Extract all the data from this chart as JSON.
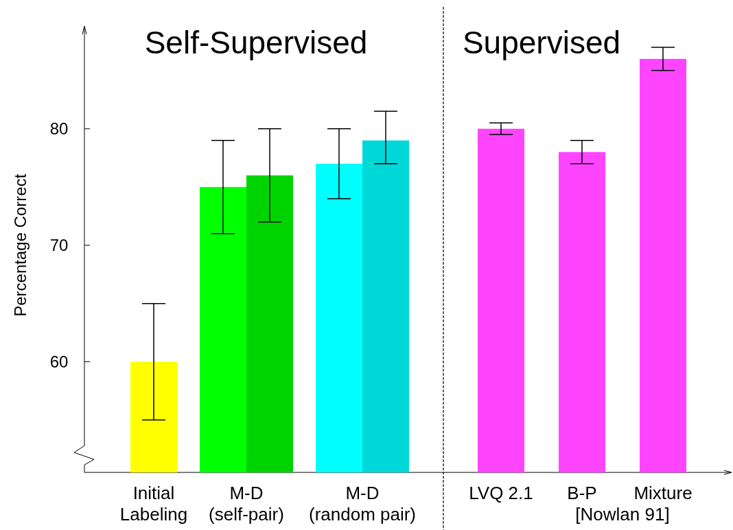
{
  "chart_data": {
    "type": "bar",
    "ylabel": "Percentage Correct",
    "categories": [
      "Initial\nLabeling",
      "M-D\n(self-pair)",
      "M-D\n(random pair)",
      "LVQ 2.1",
      "B-P",
      "Mixture"
    ],
    "series": [
      {
        "values": [
          60,
          75,
          77,
          80,
          78,
          86
        ],
        "colors": [
          "#ffff00",
          "#00ff00",
          "#00ffff",
          "#ff44ff",
          "#ff44ff",
          "#ff44ff"
        ],
        "errors": [
          [
            55,
            65
          ],
          [
            71,
            79
          ],
          [
            74,
            80
          ],
          [
            79.5,
            80.5
          ],
          [
            77,
            79
          ],
          [
            85,
            87
          ]
        ]
      },
      {
        "values": [
          null,
          76,
          79,
          null,
          null,
          null
        ],
        "colors": [
          null,
          "#00d400",
          "#00d8d8",
          null,
          null,
          null
        ],
        "errors": [
          null,
          [
            72,
            80
          ],
          [
            77,
            81.5
          ],
          null,
          null,
          null
        ]
      }
    ],
    "ylim": [
      50.5,
      88.7
    ],
    "yticks": [
      60,
      70,
      80
    ],
    "annotations": [
      "Self-Supervised",
      "Supervised",
      "[Nowlan 91]"
    ]
  }
}
